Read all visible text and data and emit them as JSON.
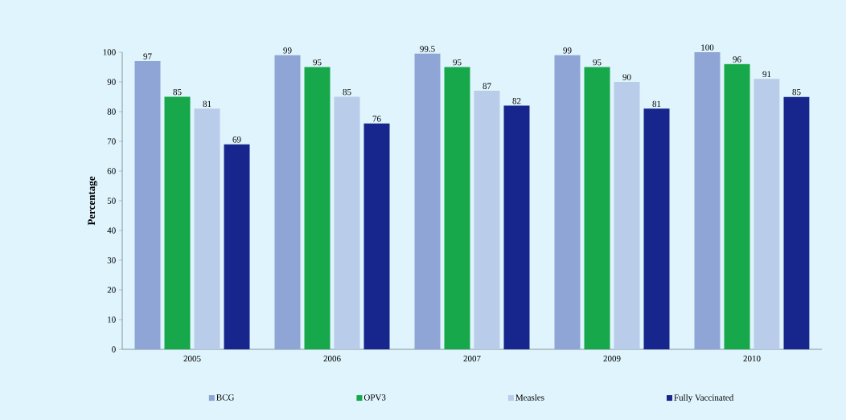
{
  "chart_data": {
    "type": "bar",
    "ylabel": "Percentage",
    "categories": [
      "2005",
      "2006",
      "2007",
      "2009",
      "2010"
    ],
    "series": [
      {
        "name": "BCG",
        "color": "#8fa5d6",
        "values": [
          97,
          99,
          99.5,
          99,
          100
        ]
      },
      {
        "name": "OPV3",
        "color": "#16a84a",
        "values": [
          85,
          95,
          95,
          95,
          96
        ]
      },
      {
        "name": "Measles",
        "color": "#b9cce9",
        "values": [
          81,
          85,
          87,
          90,
          91
        ]
      },
      {
        "name": "Fully Vaccinated",
        "color": "#17268c",
        "values": [
          69,
          76,
          82,
          81,
          85
        ]
      }
    ],
    "ylim": [
      0,
      100
    ],
    "yticks": [
      0,
      10,
      20,
      30,
      40,
      50,
      60,
      70,
      80,
      90,
      100
    ],
    "grid": false,
    "legend": "bottom",
    "data_labels": true
  }
}
